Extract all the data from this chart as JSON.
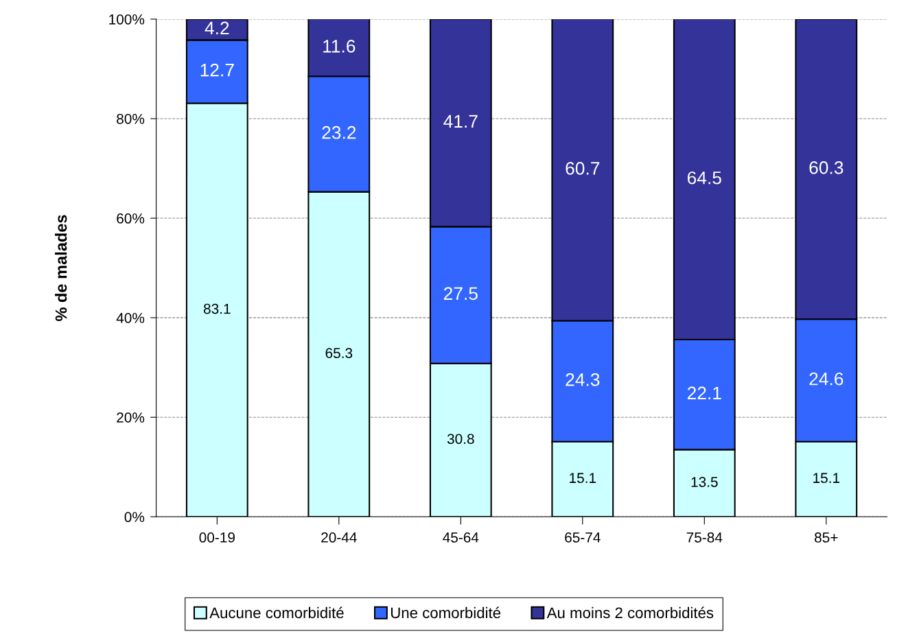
{
  "chart_data": {
    "type": "bar",
    "stacked": true,
    "ylabel": "% de malades",
    "categories": [
      "00-19",
      "20-44",
      "45-64",
      "65-74",
      "75-84",
      "85+"
    ],
    "series": [
      {
        "name": "Aucune comorbidité",
        "color": "#ccffff",
        "values": [
          83.1,
          65.3,
          30.8,
          15.1,
          13.5,
          15.1
        ]
      },
      {
        "name": "Une comorbidité",
        "color": "#3366ff",
        "values": [
          12.7,
          23.2,
          27.5,
          24.3,
          22.1,
          24.6
        ]
      },
      {
        "name": "Au moins 2 comorbidités",
        "color": "#333399",
        "values": [
          4.2,
          11.6,
          41.7,
          60.7,
          64.5,
          60.3
        ]
      }
    ],
    "ylim": [
      0,
      100
    ],
    "yticks": [
      {
        "value": 0,
        "label": "0%"
      },
      {
        "value": 20,
        "label": "20%"
      },
      {
        "value": 40,
        "label": "40%"
      },
      {
        "value": 60,
        "label": "60%"
      },
      {
        "value": 80,
        "label": "80%"
      },
      {
        "value": 100,
        "label": "100%"
      }
    ],
    "grid": "y",
    "legend": "bottom",
    "data_labels": true
  }
}
